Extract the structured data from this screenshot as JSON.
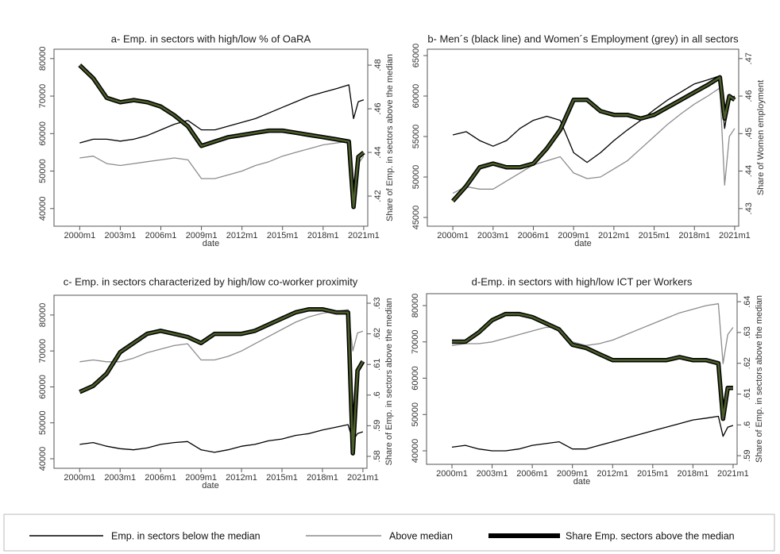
{
  "chart_data": [
    {
      "type": "line",
      "title": "a- Emp. in sectors with high/low % of OaRA",
      "xlabel": "date",
      "y2label": "Share of Emp. in sectors above the median",
      "x": [
        2000,
        2001,
        2002,
        2003,
        2004,
        2005,
        2006,
        2007,
        2008,
        2009,
        2010,
        2011,
        2012,
        2013,
        2014,
        2015,
        2016,
        2017,
        2018,
        2019,
        2019.9,
        2020.25,
        2020.6,
        2021
      ],
      "xlim": [
        1998.1,
        2021.3
      ],
      "xticks": [
        {
          "value": 2000,
          "label": "2000m1"
        },
        {
          "value": 2003,
          "label": "2003m1"
        },
        {
          "value": 2006,
          "label": "2006m1"
        },
        {
          "value": 2009,
          "label": "2009m1"
        },
        {
          "value": 2012,
          "label": "2012m1"
        },
        {
          "value": 2015,
          "label": "2015m1"
        },
        {
          "value": 2018,
          "label": "2018m1"
        },
        {
          "value": 2021,
          "label": "2021m1"
        }
      ],
      "ylim": [
        35300,
        82500
      ],
      "yticks": [
        40000,
        50000,
        60000,
        70000,
        80000
      ],
      "y2lim": [
        0.4062,
        0.4873
      ],
      "y2ticks": [
        {
          "value": 0.42,
          "label": ".42"
        },
        {
          "value": 0.44,
          "label": ".44"
        },
        {
          "value": 0.46,
          "label": ".46"
        },
        {
          "value": 0.48,
          "label": ".48"
        }
      ],
      "series": [
        {
          "name": "Emp. in sectors below the median",
          "color": "#000000",
          "values": [
            57500,
            58500,
            58500,
            58000,
            58500,
            59500,
            61000,
            62500,
            63500,
            61000,
            61000,
            62000,
            63000,
            64000,
            65500,
            67000,
            68500,
            70000,
            71000,
            72000,
            73000,
            64000,
            68500,
            69000
          ]
        },
        {
          "name": "Above median",
          "color": "#8c8c8c",
          "values": [
            53500,
            54000,
            52000,
            51500,
            52000,
            52500,
            53000,
            53500,
            53000,
            48000,
            48000,
            49000,
            50000,
            51500,
            52500,
            54000,
            55000,
            56000,
            57000,
            57500,
            58000,
            46000,
            52000,
            54000
          ]
        },
        {
          "name": "Share Emp. sectors above the median",
          "color": "#4b5e2a",
          "axis": "y2",
          "values": [
            0.48,
            0.474,
            0.465,
            0.463,
            0.464,
            0.463,
            0.461,
            0.457,
            0.452,
            0.443,
            0.445,
            0.447,
            0.448,
            0.449,
            0.45,
            0.45,
            0.449,
            0.448,
            0.447,
            0.446,
            0.445,
            0.415,
            0.438,
            0.44
          ]
        }
      ]
    },
    {
      "type": "line",
      "title": "b- Men´s (black line) and Women´s Employment (grey) in all sectors",
      "xlabel": "date",
      "y2label": "Share of Women employment",
      "x": [
        2000,
        2001,
        2002,
        2003,
        2004,
        2005,
        2006,
        2007,
        2008,
        2009,
        2010,
        2011,
        2012,
        2013,
        2014,
        2015,
        2016,
        2017,
        2018,
        2019,
        2019.9,
        2020.25,
        2020.6,
        2021
      ],
      "xlim": [
        1998.1,
        2021.3
      ],
      "xticks": [
        {
          "value": 2000,
          "label": "2000m1"
        },
        {
          "value": 2003,
          "label": "2003m1"
        },
        {
          "value": 2006,
          "label": "2006m1"
        },
        {
          "value": 2009,
          "label": "2009m1"
        },
        {
          "value": 2012,
          "label": "2012m1"
        },
        {
          "value": 2015,
          "label": "2015m1"
        },
        {
          "value": 2018,
          "label": "2018m1"
        },
        {
          "value": 2021,
          "label": "2021m1"
        }
      ],
      "ylim": [
        43922,
        65784
      ],
      "yticks": [
        45000,
        50000,
        55000,
        60000,
        65000
      ],
      "y2lim": [
        0.4253,
        0.4725
      ],
      "y2ticks": [
        {
          "value": 0.43,
          "label": ".43"
        },
        {
          "value": 0.44,
          "label": ".44"
        },
        {
          "value": 0.45,
          "label": ".45"
        },
        {
          "value": 0.46,
          "label": ".46"
        },
        {
          "value": 0.47,
          "label": ".47"
        }
      ],
      "series": [
        {
          "color": "#000000",
          "values": [
            55200,
            55600,
            54500,
            53800,
            54500,
            56000,
            57000,
            57500,
            57000,
            53000,
            51800,
            53000,
            54500,
            55800,
            57000,
            58300,
            59500,
            60500,
            61500,
            62000,
            62500,
            56000,
            59500,
            60000
          ]
        },
        {
          "color": "#8c8c8c",
          "values": [
            48000,
            48800,
            48500,
            48500,
            49500,
            50500,
            51500,
            52000,
            52500,
            50500,
            49800,
            50000,
            51000,
            52000,
            53500,
            55000,
            56500,
            57800,
            59000,
            60000,
            61000,
            49000,
            55000,
            56000
          ]
        },
        {
          "color": "#4b5e2a",
          "axis": "y2",
          "values": [
            0.432,
            0.436,
            0.441,
            0.442,
            0.441,
            0.441,
            0.442,
            0.446,
            0.451,
            0.459,
            0.459,
            0.456,
            0.455,
            0.455,
            0.454,
            0.455,
            0.457,
            0.459,
            0.461,
            0.463,
            0.465,
            0.454,
            0.46,
            0.459
          ]
        }
      ]
    },
    {
      "type": "line",
      "title": "c- Emp. in sectors characterized by high/low co-worker proximity",
      "xlabel": "date",
      "y2label": "Share of Emp. in sectors above the median",
      "x": [
        2000,
        2001,
        2002,
        2003,
        2004,
        2005,
        2006,
        2007,
        2008,
        2009,
        2010,
        2011,
        2012,
        2013,
        2014,
        2015,
        2016,
        2017,
        2018,
        2019,
        2019.9,
        2020.25,
        2020.6,
        2021
      ],
      "xlim": [
        1998.1,
        2021.3
      ],
      "xticks": [
        {
          "value": 2000,
          "label": "2000m1"
        },
        {
          "value": 2003,
          "label": "2003m1"
        },
        {
          "value": 2006,
          "label": "2006m1"
        },
        {
          "value": 2009,
          "label": "2009m1"
        },
        {
          "value": 2012,
          "label": "2012m1"
        },
        {
          "value": 2015,
          "label": "2015m1"
        },
        {
          "value": 2018,
          "label": "2018m1"
        },
        {
          "value": 2021,
          "label": "2021m1"
        }
      ],
      "ylim": [
        37350,
        85500
      ],
      "yticks": [
        40000,
        50000,
        60000,
        70000,
        80000
      ],
      "y2lim": [
        0.5761,
        0.6326
      ],
      "y2ticks": [
        {
          "value": 0.58,
          "label": ".58"
        },
        {
          "value": 0.59,
          "label": ".59"
        },
        {
          "value": 0.6,
          "label": ".6"
        },
        {
          "value": 0.61,
          "label": ".61"
        },
        {
          "value": 0.62,
          "label": ".62"
        },
        {
          "value": 0.63,
          "label": ".63"
        }
      ],
      "series": [
        {
          "color": "#000000",
          "values": [
            44000,
            44500,
            43500,
            42800,
            42500,
            43000,
            44000,
            44500,
            44800,
            42500,
            41800,
            42500,
            43500,
            44000,
            45000,
            45500,
            46500,
            47000,
            48000,
            48800,
            49500,
            45000,
            47000,
            47500
          ]
        },
        {
          "color": "#8c8c8c",
          "values": [
            67000,
            67500,
            67000,
            67000,
            68000,
            69500,
            70500,
            71500,
            72000,
            67500,
            67500,
            68500,
            70000,
            72000,
            74000,
            76000,
            78000,
            79500,
            80500,
            81000,
            81500,
            70000,
            75000,
            75500
          ]
        },
        {
          "color": "#4b5e2a",
          "axis": "y2",
          "values": [
            0.601,
            0.603,
            0.607,
            0.614,
            0.617,
            0.62,
            0.621,
            0.62,
            0.619,
            0.617,
            0.62,
            0.62,
            0.62,
            0.621,
            0.623,
            0.625,
            0.627,
            0.628,
            0.628,
            0.627,
            0.627,
            0.581,
            0.608,
            0.611
          ]
        }
      ]
    },
    {
      "type": "line",
      "title": "d-Emp. in sectors with high/low ICT per Workers",
      "xlabel": "date",
      "y2label": "Share of Emp. in sectors above the median",
      "x": [
        2000,
        2001,
        2002,
        2003,
        2004,
        2005,
        2006,
        2007,
        2008,
        2009,
        2010,
        2011,
        2012,
        2013,
        2014,
        2015,
        2016,
        2017,
        2018,
        2019,
        2019.9,
        2020.25,
        2020.6,
        2021
      ],
      "xlim": [
        1998.1,
        2021.3
      ],
      "xticks": [
        {
          "value": 2000,
          "label": "2000m1"
        },
        {
          "value": 2003,
          "label": "2003m1"
        },
        {
          "value": 2006,
          "label": "2006m1"
        },
        {
          "value": 2009,
          "label": "2009m1"
        },
        {
          "value": 2012,
          "label": "2012m1"
        },
        {
          "value": 2015,
          "label": "2015m1"
        },
        {
          "value": 2018,
          "label": "2018m1"
        },
        {
          "value": 2021,
          "label": "2021m1"
        }
      ],
      "ylim": [
        36284,
        83280
      ],
      "yticks": [
        40000,
        50000,
        60000,
        70000,
        80000
      ],
      "y2lim": [
        0.5872,
        0.6426
      ],
      "y2ticks": [
        {
          "value": 0.59,
          "label": ".59"
        },
        {
          "value": 0.6,
          "label": ".6"
        },
        {
          "value": 0.61,
          "label": ".61"
        },
        {
          "value": 0.62,
          "label": ".62"
        },
        {
          "value": 0.63,
          "label": ".63"
        },
        {
          "value": 0.64,
          "label": ".64"
        }
      ],
      "series": [
        {
          "color": "#000000",
          "values": [
            41000,
            41500,
            40500,
            40000,
            40000,
            40500,
            41500,
            42000,
            42500,
            40500,
            40500,
            41500,
            42500,
            43500,
            44500,
            45500,
            46500,
            47500,
            48500,
            49000,
            49500,
            44000,
            46500,
            47000
          ]
        },
        {
          "color": "#8c8c8c",
          "values": [
            69000,
            69500,
            69500,
            70000,
            71000,
            72000,
            73000,
            74000,
            74000,
            70000,
            69000,
            69500,
            70500,
            72000,
            73500,
            75000,
            76500,
            78000,
            79000,
            80000,
            80500,
            64000,
            72000,
            74000
          ]
        },
        {
          "color": "#4b5e2a",
          "axis": "y2",
          "values": [
            0.627,
            0.627,
            0.63,
            0.634,
            0.636,
            0.636,
            0.635,
            0.633,
            0.631,
            0.626,
            0.625,
            0.623,
            0.621,
            0.621,
            0.621,
            0.621,
            0.621,
            0.622,
            0.621,
            0.621,
            0.62,
            0.602,
            0.612,
            0.612
          ]
        }
      ]
    }
  ]
}
